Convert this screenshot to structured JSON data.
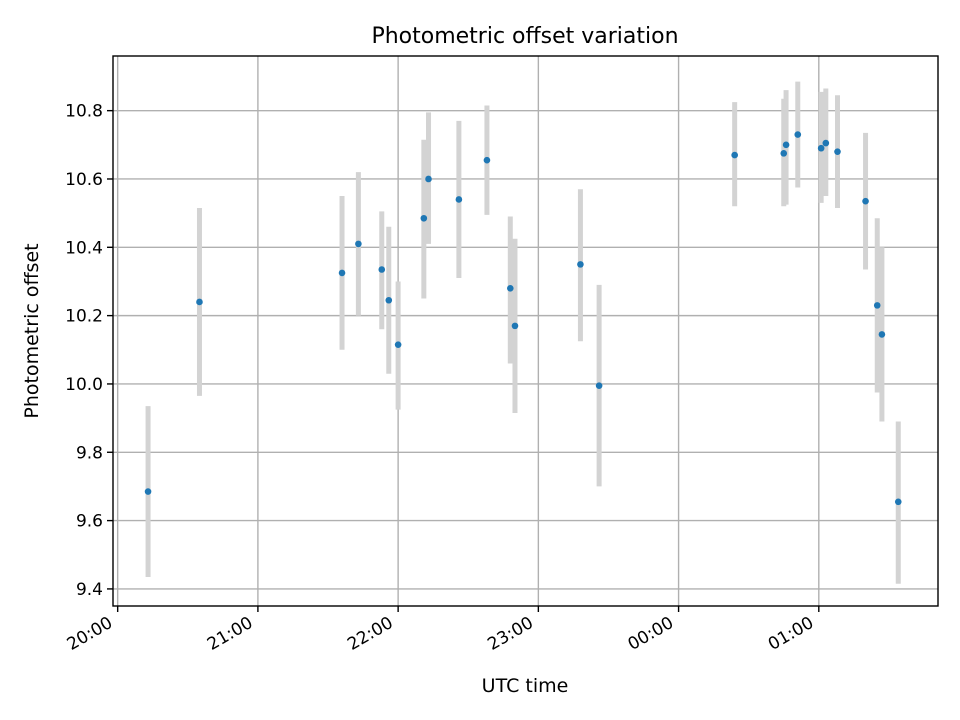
{
  "chart_data": {
    "type": "scatter",
    "title": "Photometric offset variation",
    "xlabel": "UTC time",
    "ylabel": "Photometric offset",
    "grid": true,
    "x_axis": "time",
    "xlim": [
      "19:58",
      "25:51"
    ],
    "ylim": [
      9.35,
      10.96
    ],
    "x_ticks": [
      "20:00",
      "21:00",
      "22:00",
      "23:00",
      "00:00",
      "01:00"
    ],
    "y_ticks": [
      "9.4",
      "9.6",
      "9.8",
      "10.0",
      "10.2",
      "10.4",
      "10.6",
      "10.8"
    ],
    "series": [
      {
        "color": "#1f77b4",
        "error_color": "#d3d3d3",
        "points": [
          {
            "time": "20:13",
            "y": 9.685,
            "ylow": 9.435,
            "yhigh": 9.935
          },
          {
            "time": "20:35",
            "y": 10.24,
            "ylow": 9.965,
            "yhigh": 10.515
          },
          {
            "time": "21:36",
            "y": 10.325,
            "ylow": 10.1,
            "yhigh": 10.55
          },
          {
            "time": "21:43",
            "y": 10.41,
            "ylow": 10.2,
            "yhigh": 10.62
          },
          {
            "time": "21:53",
            "y": 10.335,
            "ylow": 10.16,
            "yhigh": 10.505
          },
          {
            "time": "21:56",
            "y": 10.245,
            "ylow": 10.03,
            "yhigh": 10.46
          },
          {
            "time": "22:00",
            "y": 10.115,
            "ylow": 9.925,
            "yhigh": 10.3
          },
          {
            "time": "22:11",
            "y": 10.485,
            "ylow": 10.25,
            "yhigh": 10.715
          },
          {
            "time": "22:13",
            "y": 10.6,
            "ylow": 10.41,
            "yhigh": 10.795
          },
          {
            "time": "22:26",
            "y": 10.54,
            "ylow": 10.31,
            "yhigh": 10.77
          },
          {
            "time": "22:38",
            "y": 10.655,
            "ylow": 10.495,
            "yhigh": 10.815
          },
          {
            "time": "22:48",
            "y": 10.28,
            "ylow": 10.06,
            "yhigh": 10.49
          },
          {
            "time": "22:50",
            "y": 10.17,
            "ylow": 9.915,
            "yhigh": 10.425
          },
          {
            "time": "23:18",
            "y": 10.35,
            "ylow": 10.125,
            "yhigh": 10.57
          },
          {
            "time": "23:26",
            "y": 9.995,
            "ylow": 9.7,
            "yhigh": 10.29
          },
          {
            "time": "24:24",
            "y": 10.67,
            "ylow": 10.52,
            "yhigh": 10.825
          },
          {
            "time": "24:45",
            "y": 10.675,
            "ylow": 10.52,
            "yhigh": 10.835
          },
          {
            "time": "24:46",
            "y": 10.7,
            "ylow": 10.525,
            "yhigh": 10.86
          },
          {
            "time": "24:51",
            "y": 10.73,
            "ylow": 10.575,
            "yhigh": 10.885
          },
          {
            "time": "25:01",
            "y": 10.69,
            "ylow": 10.53,
            "yhigh": 10.855
          },
          {
            "time": "25:03",
            "y": 10.705,
            "ylow": 10.55,
            "yhigh": 10.865
          },
          {
            "time": "25:08",
            "y": 10.68,
            "ylow": 10.515,
            "yhigh": 10.845
          },
          {
            "time": "25:20",
            "y": 10.535,
            "ylow": 10.335,
            "yhigh": 10.735
          },
          {
            "time": "25:25",
            "y": 10.23,
            "ylow": 9.975,
            "yhigh": 10.485
          },
          {
            "time": "25:27",
            "y": 10.145,
            "ylow": 9.89,
            "yhigh": 10.4
          },
          {
            "time": "25:34",
            "y": 9.655,
            "ylow": 9.415,
            "yhigh": 9.89
          }
        ]
      }
    ]
  }
}
